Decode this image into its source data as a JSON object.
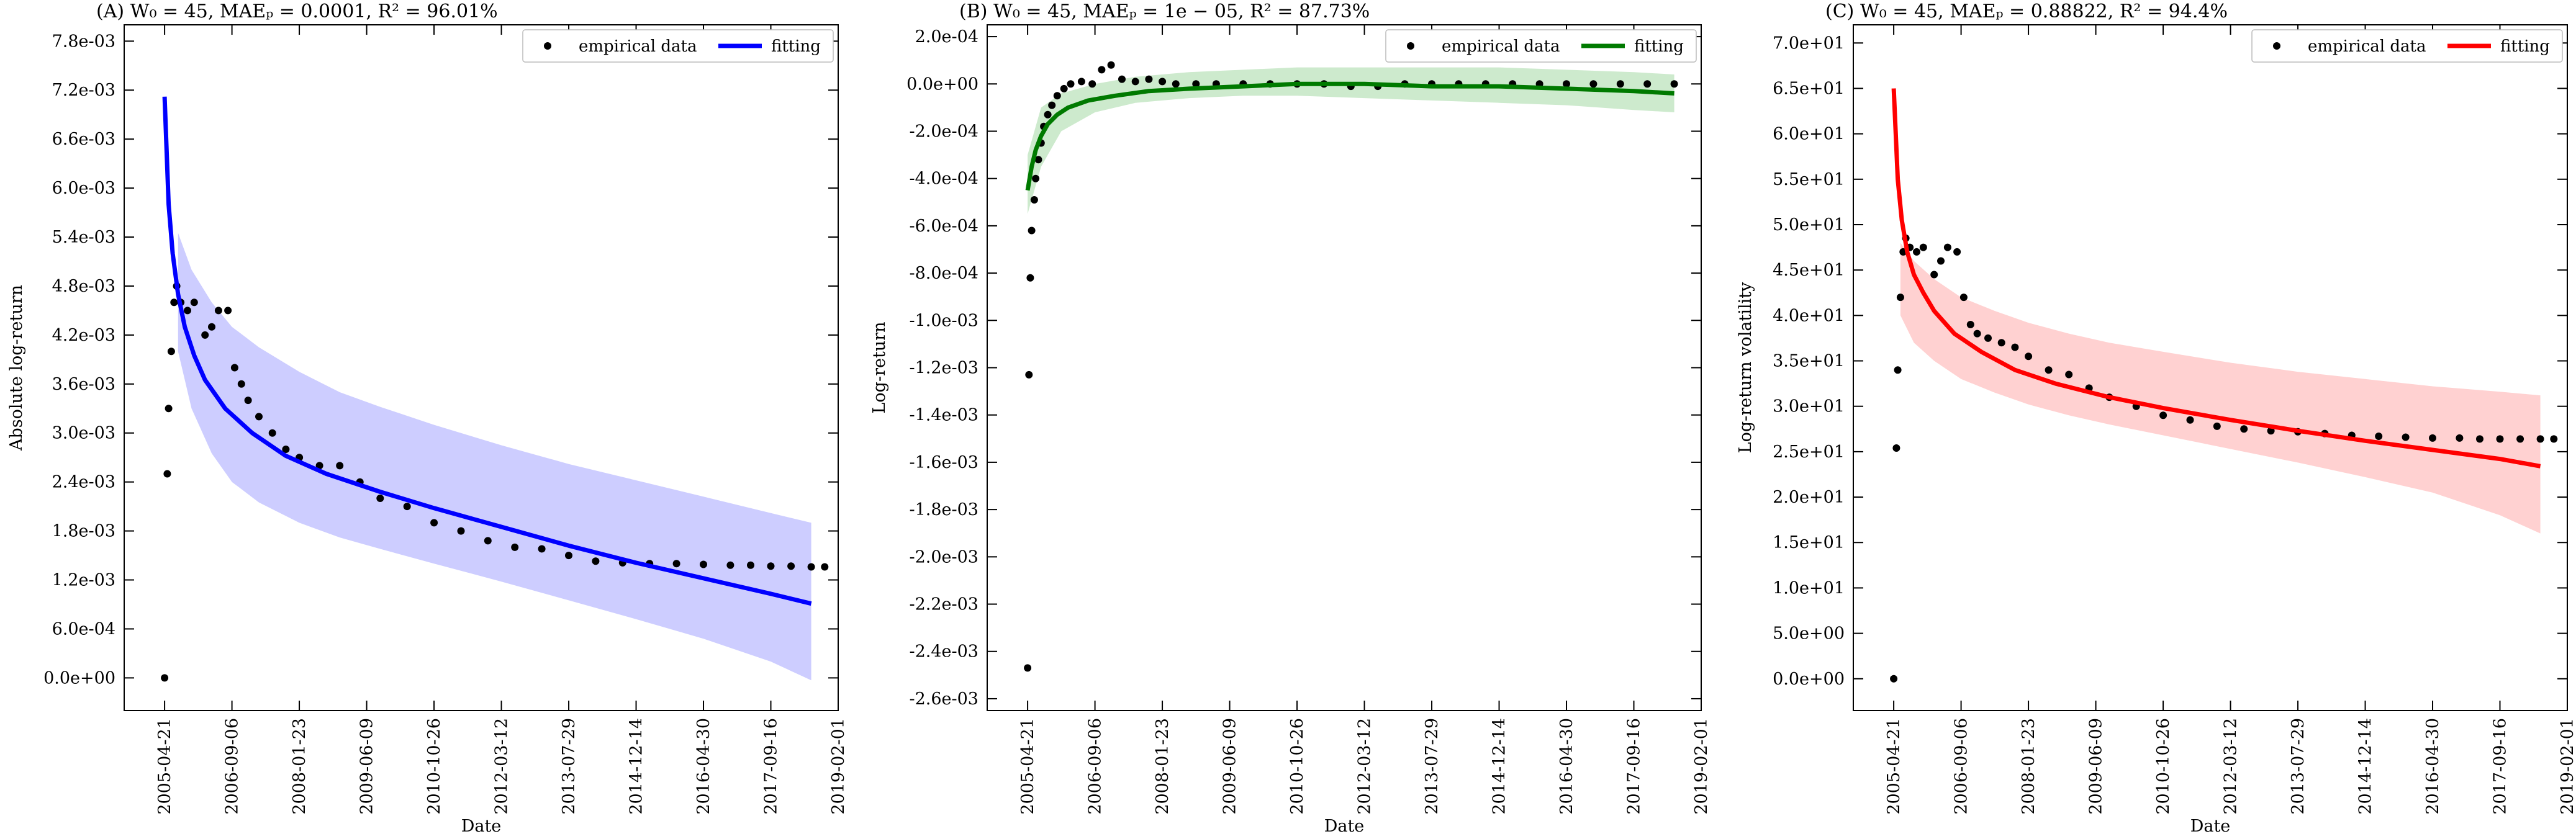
{
  "chart_data": [
    {
      "panel": "A",
      "type": "scatter",
      "title": "(A) W₀ = 45, MAEₚ = 0.0001, R² = 96.01%",
      "xlabel": "Date",
      "ylabel": "Absolute log-return",
      "x_tick_labels": [
        "2005-04-21",
        "2006-09-06",
        "2008-01-23",
        "2009-06-09",
        "2010-10-26",
        "2012-03-12",
        "2013-07-29",
        "2014-12-14",
        "2016-04-30",
        "2017-09-16",
        "2019-02-01"
      ],
      "y_tick_labels": [
        "0.0e+00",
        "6.0e-04",
        "1.2e-03",
        "1.8e-03",
        "2.4e-03",
        "3.0e-03",
        "3.6e-03",
        "4.2e-03",
        "4.8e-03",
        "5.4e-03",
        "6.0e-03",
        "6.6e-03",
        "7.2e-03",
        "7.8e-03"
      ],
      "y_ticks": [
        0,
        0.0006,
        0.0012,
        0.0018,
        0.0024,
        0.003,
        0.0036,
        0.0042,
        0.0048,
        0.0054,
        0.006,
        0.0066,
        0.0072,
        0.0078
      ],
      "xlim": [
        -0.3,
        5.0
      ],
      "ylim": [
        -0.0004,
        0.008
      ],
      "series": [
        {
          "name": "empirical data",
          "color": "#000000",
          "style": "markers",
          "x": [
            0.0,
            0.02,
            0.03,
            0.05,
            0.07,
            0.09,
            0.12,
            0.17,
            0.22,
            0.3,
            0.35,
            0.4,
            0.47,
            0.52,
            0.57,
            0.62,
            0.7,
            0.8,
            0.9,
            1.0,
            1.15,
            1.3,
            1.45,
            1.6,
            1.8,
            2.0,
            2.2,
            2.4,
            2.6,
            2.8,
            3.0,
            3.2,
            3.4,
            3.6,
            3.8,
            4.0,
            4.2,
            4.35,
            4.5,
            4.65,
            4.8,
            4.9
          ],
          "y": [
            0.0,
            0.0025,
            0.0033,
            0.004,
            0.0046,
            0.0048,
            0.0046,
            0.0045,
            0.0046,
            0.0042,
            0.0043,
            0.0045,
            0.0045,
            0.0038,
            0.0036,
            0.0034,
            0.0032,
            0.003,
            0.0028,
            0.0027,
            0.0026,
            0.0026,
            0.0024,
            0.0022,
            0.0021,
            0.0019,
            0.0018,
            0.00168,
            0.0016,
            0.00158,
            0.0015,
            0.00143,
            0.00141,
            0.0014,
            0.0014,
            0.00139,
            0.00138,
            0.00138,
            0.00137,
            0.00137,
            0.00136,
            0.00136
          ]
        },
        {
          "name": "fitting",
          "color": "#0000ff",
          "style": "line",
          "x": [
            0.0,
            0.03,
            0.06,
            0.1,
            0.15,
            0.22,
            0.3,
            0.45,
            0.65,
            0.9,
            1.2,
            1.6,
            2.0,
            2.5,
            3.0,
            3.5,
            4.0,
            4.5,
            4.8
          ],
          "y": [
            0.00712,
            0.0058,
            0.0052,
            0.0047,
            0.0043,
            0.00395,
            0.00365,
            0.0033,
            0.003,
            0.00272,
            0.0025,
            0.00228,
            0.00208,
            0.00185,
            0.00162,
            0.00141,
            0.00122,
            0.00103,
            0.00091
          ]
        }
      ],
      "band": {
        "color": "#c8c8ff",
        "x": [
          0.1,
          0.2,
          0.35,
          0.5,
          0.7,
          1.0,
          1.3,
          1.6,
          2.0,
          2.5,
          3.0,
          3.5,
          4.0,
          4.5,
          4.8
        ],
        "upper": [
          0.00545,
          0.005,
          0.0046,
          0.0043,
          0.00405,
          0.00375,
          0.0035,
          0.00332,
          0.0031,
          0.00285,
          0.00262,
          0.00242,
          0.00222,
          0.00202,
          0.0019
        ],
        "lower": [
          0.004,
          0.0033,
          0.00275,
          0.0024,
          0.00215,
          0.0019,
          0.00172,
          0.00158,
          0.0014,
          0.00118,
          0.00095,
          0.00072,
          0.00048,
          0.0002,
          -3e-05
        ]
      },
      "legend": {
        "position": "top-right",
        "entries": [
          "empirical data",
          "fitting"
        ]
      }
    },
    {
      "panel": "B",
      "type": "scatter",
      "title": "(B) W₀ = 45, MAEₚ = 1e − 05, R² = 87.73%",
      "xlabel": "Date",
      "ylabel": "Log-return",
      "x_tick_labels": [
        "2005-04-21",
        "2006-09-06",
        "2008-01-23",
        "2009-06-09",
        "2010-10-26",
        "2012-03-12",
        "2013-07-29",
        "2014-12-14",
        "2016-04-30",
        "2017-09-16",
        "2019-02-01"
      ],
      "y_tick_labels": [
        "-2.6e-03",
        "-2.4e-03",
        "-2.2e-03",
        "-2.0e-03",
        "-1.8e-03",
        "-1.6e-03",
        "-1.4e-03",
        "-1.2e-03",
        "-1.0e-03",
        "-8.0e-04",
        "-6.0e-04",
        "-4.0e-04",
        "-2.0e-04",
        "0.0e+00",
        "2.0e-04"
      ],
      "y_ticks": [
        -0.0026,
        -0.0024,
        -0.0022,
        -0.002,
        -0.0018,
        -0.0016,
        -0.0014,
        -0.0012,
        -0.001,
        -0.0008,
        -0.0006,
        -0.0004,
        -0.0002,
        0,
        0.0002
      ],
      "xlim": [
        -0.3,
        5.0
      ],
      "ylim": [
        -0.00265,
        0.00025
      ],
      "series": [
        {
          "name": "empirical data",
          "color": "#000000",
          "style": "markers",
          "x": [
            0.0,
            0.01,
            0.02,
            0.03,
            0.05,
            0.06,
            0.08,
            0.1,
            0.12,
            0.15,
            0.18,
            0.22,
            0.27,
            0.32,
            0.4,
            0.48,
            0.55,
            0.62,
            0.7,
            0.8,
            0.9,
            1.0,
            1.1,
            1.25,
            1.4,
            1.6,
            1.8,
            2.0,
            2.2,
            2.4,
            2.6,
            2.8,
            3.0,
            3.2,
            3.4,
            3.6,
            3.8,
            4.0,
            4.2,
            4.4,
            4.6,
            4.8
          ],
          "y": [
            -0.00247,
            -0.00123,
            -0.00082,
            -0.00062,
            -0.00049,
            -0.0004,
            -0.00032,
            -0.00025,
            -0.00018,
            -0.00013,
            -9e-05,
            -5e-05,
            -2e-05,
            0.0,
            1e-05,
            0.0,
            6e-05,
            8e-05,
            2e-05,
            1e-05,
            2e-05,
            1e-05,
            0.0,
            0.0,
            0.0,
            0.0,
            0.0,
            0.0,
            0.0,
            -1e-05,
            -1e-05,
            0.0,
            0.0,
            0.0,
            0.0,
            0.0,
            0.0,
            0.0,
            0.0,
            0.0,
            0.0,
            0.0
          ]
        },
        {
          "name": "fitting",
          "color": "#007a00",
          "style": "line",
          "x": [
            0.0,
            0.03,
            0.06,
            0.1,
            0.15,
            0.22,
            0.3,
            0.45,
            0.65,
            0.9,
            1.2,
            1.6,
            2.0,
            2.5,
            3.0,
            3.5,
            4.0,
            4.5,
            4.8
          ],
          "y": [
            -0.00045,
            -0.00035,
            -0.00028,
            -0.00022,
            -0.00017,
            -0.00013,
            -0.0001,
            -7e-05,
            -5e-05,
            -3e-05,
            -2e-05,
            -1e-05,
            0.0,
            0.0,
            -1e-05,
            -1e-05,
            -2e-05,
            -3e-05,
            -4e-05
          ]
        }
      ],
      "band": {
        "color": "#c8e8c8",
        "x": [
          0.0,
          0.1,
          0.25,
          0.5,
          0.8,
          1.2,
          1.6,
          2.0,
          2.5,
          3.0,
          3.5,
          4.0,
          4.5,
          4.8
        ],
        "upper": [
          -0.0003,
          -0.0001,
          -4e-05,
          0.0,
          3e-05,
          5e-05,
          6e-05,
          7e-05,
          7e-05,
          7e-05,
          7e-05,
          6e-05,
          5e-05,
          4e-05
        ],
        "lower": [
          -0.00055,
          -0.00035,
          -0.0002,
          -0.00012,
          -8e-05,
          -6e-05,
          -5e-05,
          -5e-05,
          -6e-05,
          -7e-05,
          -8e-05,
          -9e-05,
          -0.00011,
          -0.00012
        ]
      },
      "legend": {
        "position": "top-right",
        "entries": [
          "empirical data",
          "fitting"
        ]
      }
    },
    {
      "panel": "C",
      "type": "scatter",
      "title": "(C) W₀ = 45, MAEₚ = 0.88822, R² = 94.4%",
      "xlabel": "Date",
      "ylabel": "Log-return volatility",
      "x_tick_labels": [
        "2005-04-21",
        "2006-09-06",
        "2008-01-23",
        "2009-06-09",
        "2010-10-26",
        "2012-03-12",
        "2013-07-29",
        "2014-12-14",
        "2016-04-30",
        "2017-09-16",
        "2019-02-01"
      ],
      "y_tick_labels": [
        "0.0e+00",
        "5.0e+00",
        "1.0e+01",
        "1.5e+01",
        "2.0e+01",
        "2.5e+01",
        "3.0e+01",
        "3.5e+01",
        "4.0e+01",
        "4.5e+01",
        "5.0e+01",
        "5.5e+01",
        "6.0e+01",
        "6.5e+01",
        "7.0e+01"
      ],
      "y_ticks": [
        0,
        5,
        10,
        15,
        20,
        25,
        30,
        35,
        40,
        45,
        50,
        55,
        60,
        65,
        70
      ],
      "xlim": [
        -0.3,
        5.0
      ],
      "ylim": [
        -3.5,
        72
      ],
      "series": [
        {
          "name": "empirical data",
          "color": "#000000",
          "style": "markers",
          "x": [
            0.0,
            0.02,
            0.03,
            0.05,
            0.07,
            0.09,
            0.12,
            0.17,
            0.22,
            0.3,
            0.35,
            0.4,
            0.47,
            0.52,
            0.57,
            0.62,
            0.7,
            0.8,
            0.9,
            1.0,
            1.15,
            1.3,
            1.45,
            1.6,
            1.8,
            2.0,
            2.2,
            2.4,
            2.6,
            2.8,
            3.0,
            3.2,
            3.4,
            3.6,
            3.8,
            4.0,
            4.2,
            4.35,
            4.5,
            4.65,
            4.8,
            4.9
          ],
          "y": [
            0.0,
            25.4,
            34.0,
            42.0,
            47.0,
            48.5,
            47.5,
            47.0,
            47.5,
            44.5,
            46.0,
            47.5,
            47.0,
            42.0,
            39.0,
            38.0,
            37.5,
            37.0,
            36.5,
            35.5,
            34.0,
            33.5,
            32.0,
            31.0,
            30.0,
            29.0,
            28.5,
            27.8,
            27.5,
            27.3,
            27.2,
            27.0,
            26.8,
            26.7,
            26.6,
            26.5,
            26.5,
            26.4,
            26.4,
            26.4,
            26.4,
            26.4
          ]
        },
        {
          "name": "fitting",
          "color": "#ff0000",
          "style": "line",
          "x": [
            0.0,
            0.03,
            0.06,
            0.1,
            0.15,
            0.22,
            0.3,
            0.45,
            0.65,
            0.9,
            1.2,
            1.6,
            2.0,
            2.5,
            3.0,
            3.5,
            4.0,
            4.5,
            4.8
          ],
          "y": [
            65.0,
            55.0,
            50.5,
            47.0,
            44.5,
            42.5,
            40.5,
            38.0,
            36.0,
            34.0,
            32.5,
            31.0,
            29.8,
            28.5,
            27.3,
            26.2,
            25.2,
            24.2,
            23.4
          ]
        }
      ],
      "band": {
        "color": "#ffcccc",
        "x": [
          0.05,
          0.15,
          0.3,
          0.5,
          0.75,
          1.0,
          1.3,
          1.6,
          2.0,
          2.5,
          3.0,
          3.5,
          4.0,
          4.5,
          4.8
        ],
        "upper": [
          48.0,
          46.0,
          44.0,
          42.0,
          40.5,
          39.2,
          38.0,
          37.0,
          36.0,
          34.8,
          33.8,
          33.0,
          32.2,
          31.6,
          31.2
        ],
        "lower": [
          40.0,
          37.0,
          35.0,
          33.0,
          31.5,
          30.2,
          29.0,
          28.0,
          26.8,
          25.3,
          23.8,
          22.2,
          20.5,
          18.0,
          16.0
        ]
      },
      "legend": {
        "position": "top-right",
        "entries": [
          "empirical data",
          "fitting"
        ]
      }
    }
  ]
}
